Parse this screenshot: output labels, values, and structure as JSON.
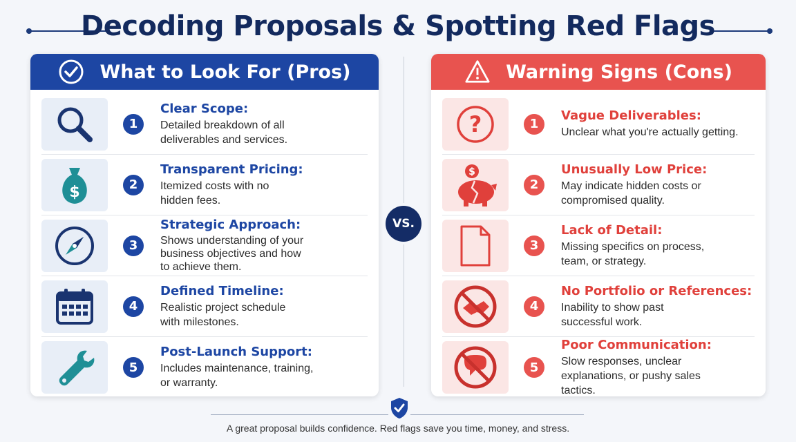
{
  "title": "Decoding Proposals & Spotting Red Flags",
  "colors": {
    "navy": "#132a5e",
    "blue": "#1d46a3",
    "red": "#e8534f",
    "teal": "#1f8f96"
  },
  "pros": {
    "header": "What to Look For (Pros)",
    "header_icon": "check-circle-icon",
    "items": [
      {
        "num": "1",
        "title": "Clear Scope:",
        "desc": "Detailed breakdown of all deliverables and services.",
        "icon": "magnifier-icon"
      },
      {
        "num": "2",
        "title": "Transparent Pricing:",
        "desc": "Itemized costs with no hidden fees.",
        "icon": "money-bag-icon"
      },
      {
        "num": "3",
        "title": "Strategic Approach:",
        "desc": "Shows understanding of your business objectives and how to achieve them.",
        "icon": "compass-icon"
      },
      {
        "num": "4",
        "title": "Defined Timeline:",
        "desc": "Realistic project schedule with milestones.",
        "icon": "calendar-icon"
      },
      {
        "num": "5",
        "title": "Post-Launch Support:",
        "desc": "Includes maintenance, training, or warranty.",
        "icon": "wrench-icon"
      }
    ]
  },
  "cons": {
    "header": "Warning Signs (Cons)",
    "header_icon": "warning-triangle-icon",
    "items": [
      {
        "num": "1",
        "title": "Vague Deliverables:",
        "desc": "Unclear what you're actually getting.",
        "icon": "question-icon"
      },
      {
        "num": "2",
        "title": "Unusually Low Price:",
        "desc": "May indicate hidden costs or compromised quality.",
        "icon": "broken-piggy-bank-icon"
      },
      {
        "num": "3",
        "title": "Lack of Detail:",
        "desc": "Missing specifics on process, team, or strategy.",
        "icon": "blank-document-icon"
      },
      {
        "num": "4",
        "title": "No Portfolio or References:",
        "desc": "Inability to show past successful work.",
        "icon": "no-handshake-icon"
      },
      {
        "num": "5",
        "title": "Poor Communication:",
        "desc": "Slow responses, unclear explanations, or pushy sales tactics.",
        "icon": "no-chat-icon"
      }
    ]
  },
  "vs_label": "VS.",
  "footer": "A great proposal builds confidence.  Red flags save you time, money, and stress."
}
